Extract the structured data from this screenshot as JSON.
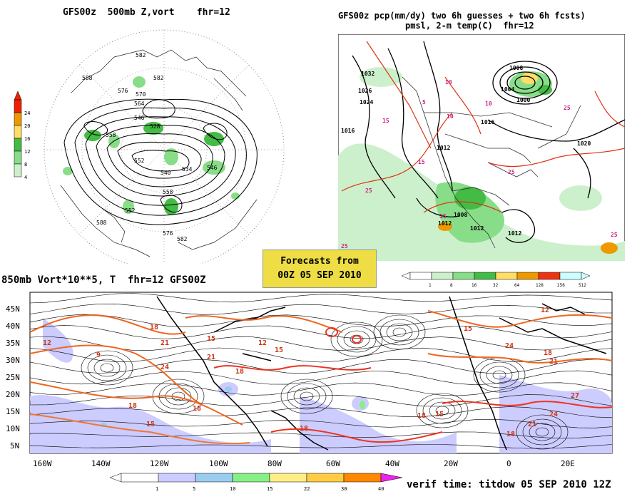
{
  "panel_500mb": {
    "title": "GFS00z  500mb Z,vort    fhr=12",
    "colorbar": {
      "ticks": [
        "24",
        "20",
        "16",
        "12",
        "8",
        "4"
      ],
      "colors": [
        "#ee2200",
        "#ee9900",
        "#ffdd66",
        "#44bb44",
        "#88dd88",
        "#ccf0cc"
      ]
    },
    "contour_labels": [
      "582",
      "582",
      "588",
      "576",
      "570",
      "564",
      "558",
      "552",
      "546",
      "540",
      "528",
      "534",
      "576",
      "582",
      "588",
      "558",
      "552",
      "546"
    ]
  },
  "panel_precip": {
    "title_line1": "GFS00z pcp(mm/dy) two 6h guesses + two 6h fcsts)",
    "title_line2": "pmsl, 2-m temp(C)  fhr=12",
    "pressure_labels": [
      "1032",
      "1026",
      "1024",
      "1016",
      "1016",
      "1012",
      "1008",
      "1004",
      "1000",
      "1020",
      "1012",
      "1012",
      "1008",
      "1012"
    ],
    "temp_labels": [
      "25",
      "25",
      "25",
      "25",
      "15",
      "15",
      "10",
      "10",
      "10",
      "5",
      "15",
      "25"
    ],
    "colorbar": {
      "ticks": [
        "1",
        "8",
        "16",
        "32",
        "64",
        "128",
        "256",
        "512"
      ],
      "colors": [
        "#ffffff",
        "#ccf0cc",
        "#88dd88",
        "#44bb44",
        "#ffdd66",
        "#ee9900",
        "#ee3311",
        "#ccffff"
      ]
    }
  },
  "forecast_box": {
    "line1": "Forecasts from",
    "line2": "00Z 05 SEP 2010"
  },
  "panel_850mb": {
    "title": "850mb Vort*10**5, T  fhr=12 GFS00Z",
    "lat_labels": [
      "45N",
      "40N",
      "35N",
      "30N",
      "25N",
      "20N",
      "15N",
      "10N",
      "5N"
    ],
    "lon_labels": [
      "160W",
      "140W",
      "120W",
      "100W",
      "80W",
      "60W",
      "40W",
      "20W",
      "0",
      "20E"
    ],
    "temp_labels": [
      "12",
      "9",
      "18",
      "21",
      "24",
      "18",
      "15",
      "18",
      "15",
      "21",
      "12",
      "15",
      "18",
      "12",
      "15",
      "24",
      "18",
      "21",
      "27",
      "24",
      "18",
      "15",
      "18",
      "18",
      "21"
    ],
    "colorbar": {
      "ticks": [
        "1",
        "5",
        "10",
        "15",
        "22",
        "30",
        "40"
      ],
      "colors": [
        "#ffffff",
        "#ccccff",
        "#99ccee",
        "#88ee88",
        "#ffee88",
        "#ffcc44",
        "#ff8800",
        "#ee22ee"
      ]
    }
  },
  "verif_time": "verif time: titdow 05 SEP 2010 12Z"
}
